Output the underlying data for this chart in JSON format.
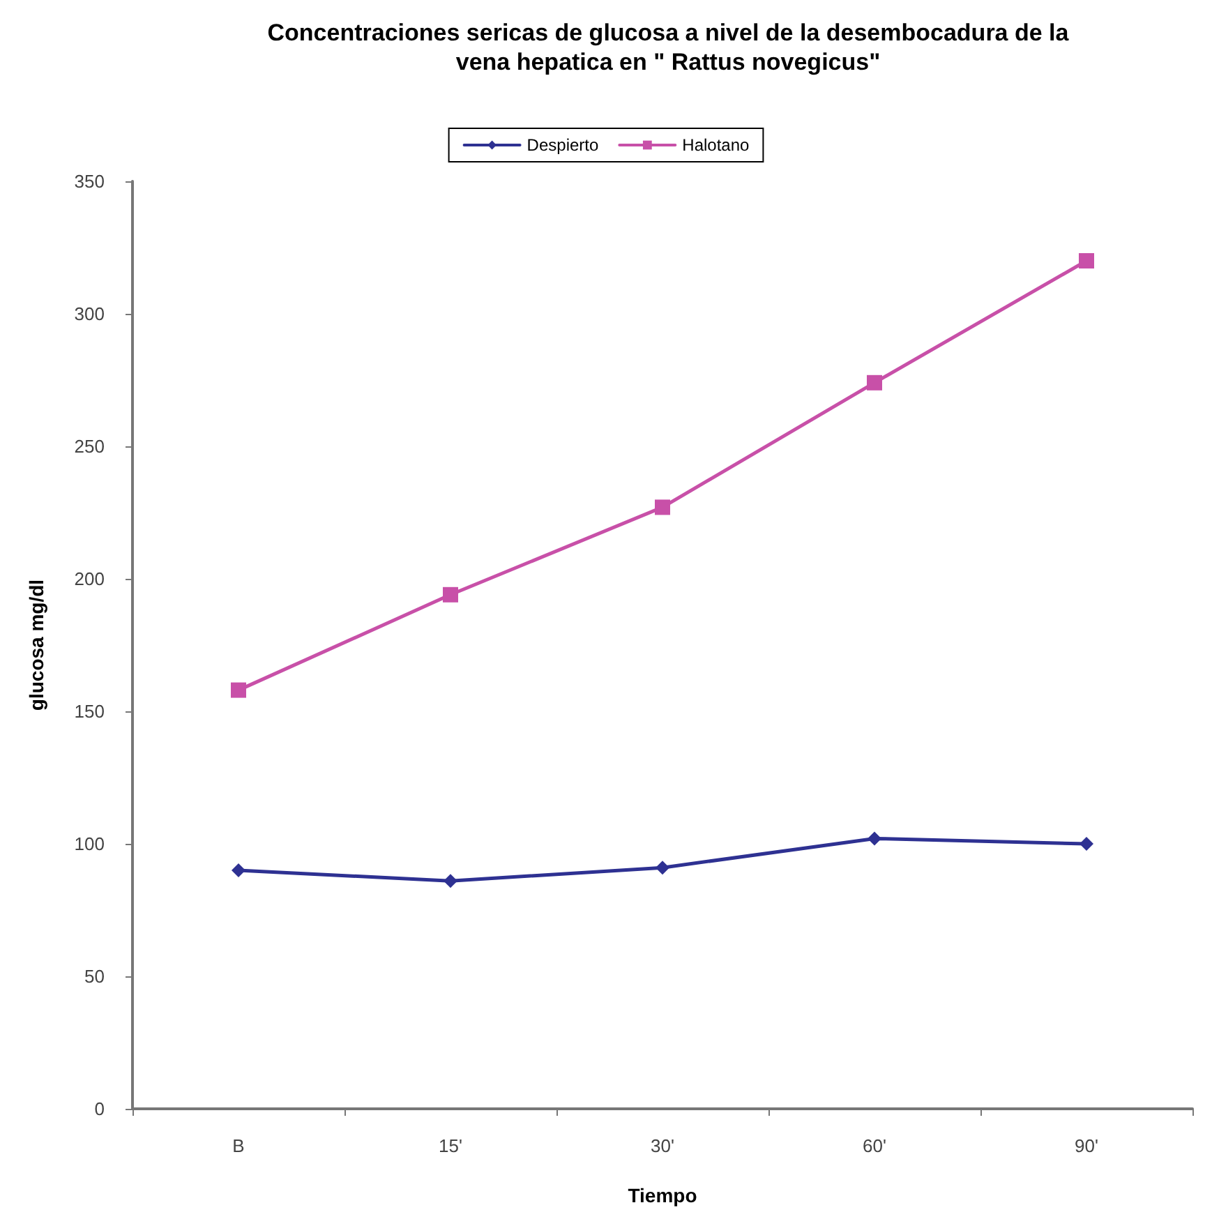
{
  "chart_data": {
    "type": "line",
    "title": "Concentraciones sericas de glucosa a nivel de la desembocadura de la\nvena hepatica en \" Rattus novegicus\"",
    "xlabel": "Tiempo",
    "ylabel": "glucosa mg/dl",
    "categories": [
      "B",
      "15'",
      "30'",
      "60'",
      "90'"
    ],
    "series": [
      {
        "name": "Despierto",
        "color": "#2e3192",
        "marker": "diamond",
        "values": [
          90,
          86,
          91,
          102,
          100
        ]
      },
      {
        "name": "Halotano",
        "color": "#c850a8",
        "marker": "square",
        "values": [
          158,
          194,
          227,
          274,
          320
        ]
      }
    ],
    "ylim": [
      0,
      350
    ],
    "yticks": [
      0,
      50,
      100,
      150,
      200,
      250,
      300,
      350
    ],
    "grid": false,
    "legend": "top",
    "line_style": "solid"
  }
}
